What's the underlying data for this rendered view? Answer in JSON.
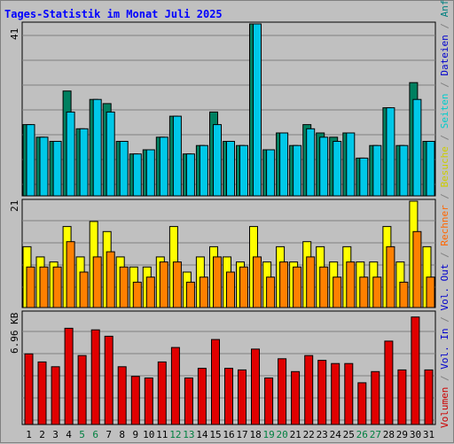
{
  "title": "Tages-Statistik im Monat Juli 2025",
  "legend": {
    "items": [
      {
        "text": "Volumen",
        "color": "#cc0000"
      },
      {
        "text": " / ",
        "color": "#808080"
      },
      {
        "text": "Vol. In",
        "color": "#0000cc"
      },
      {
        "text": " / ",
        "color": "#808080"
      },
      {
        "text": "Vol. Out",
        "color": "#0000cc"
      },
      {
        "text": " / ",
        "color": "#808080"
      },
      {
        "text": "Rechner",
        "color": "#ff6600"
      },
      {
        "text": " / ",
        "color": "#808080"
      },
      {
        "text": "Besuche",
        "color": "#cccc00"
      },
      {
        "text": " / ",
        "color": "#808080"
      },
      {
        "text": "Seiten",
        "color": "#00cccc"
      },
      {
        "text": " / ",
        "color": "#808080"
      },
      {
        "text": "Dateien",
        "color": "#0000cc"
      },
      {
        "text": " / ",
        "color": "#808080"
      },
      {
        "text": "Anfragen",
        "color": "#008080"
      }
    ]
  },
  "colors": {
    "background": "#c0c0c0",
    "anfragen": "#008060",
    "dateien": "#00c8e8",
    "besuche": "#ffff00",
    "rechner": "#ff8000",
    "volumen": "#e00000",
    "weekday_label": "#000000",
    "weekend_label": "#008040"
  },
  "chart_data": [
    {
      "type": "bar",
      "panel": "requests",
      "ymax_label": "41",
      "ylim": [
        0,
        41
      ],
      "categories": [
        "1",
        "2",
        "3",
        "4",
        "5",
        "6",
        "7",
        "8",
        "9",
        "10",
        "11",
        "12",
        "13",
        "14",
        "15",
        "16",
        "17",
        "18",
        "19",
        "20",
        "21",
        "22",
        "23",
        "24",
        "25",
        "26",
        "27",
        "28",
        "29",
        "30",
        "31"
      ],
      "series": [
        {
          "name": "Anfragen",
          "values": [
            17,
            14,
            13,
            25,
            16,
            23,
            22,
            13,
            10,
            11,
            14,
            19,
            10,
            12,
            20,
            13,
            12,
            41,
            11,
            15,
            12,
            17,
            15,
            14,
            15,
            9,
            12,
            21,
            12,
            27,
            13
          ]
        },
        {
          "name": "Dateien",
          "values": [
            17,
            14,
            13,
            20,
            16,
            23,
            20,
            13,
            10,
            11,
            14,
            19,
            10,
            12,
            17,
            13,
            12,
            41,
            11,
            15,
            12,
            16,
            14,
            13,
            15,
            9,
            12,
            21,
            12,
            23,
            13
          ]
        }
      ]
    },
    {
      "type": "bar",
      "panel": "visits",
      "ymax_label": "21",
      "ylim": [
        0,
        21
      ],
      "categories": [
        "1",
        "2",
        "3",
        "4",
        "5",
        "6",
        "7",
        "8",
        "9",
        "10",
        "11",
        "12",
        "13",
        "14",
        "15",
        "16",
        "17",
        "18",
        "19",
        "20",
        "21",
        "22",
        "23",
        "24",
        "25",
        "26",
        "27",
        "28",
        "29",
        "30",
        "31"
      ],
      "series": [
        {
          "name": "Besuche",
          "values": [
            12,
            10,
            9,
            16,
            10,
            17,
            15,
            10,
            8,
            8,
            10,
            16,
            7,
            10,
            12,
            10,
            9,
            16,
            9,
            12,
            9,
            13,
            12,
            9,
            12,
            9,
            9,
            16,
            9,
            21,
            12
          ]
        },
        {
          "name": "Rechner",
          "values": [
            8,
            8,
            8,
            13,
            7,
            10,
            11,
            8,
            5,
            6,
            9,
            9,
            5,
            6,
            10,
            7,
            8,
            10,
            6,
            9,
            8,
            10,
            8,
            6,
            9,
            6,
            6,
            12,
            5,
            15,
            6
          ]
        }
      ]
    },
    {
      "type": "bar",
      "panel": "volume",
      "ymax_label": "6.96 KB",
      "ylim": [
        0,
        6.96
      ],
      "categories": [
        "1",
        "2",
        "3",
        "4",
        "5",
        "6",
        "7",
        "8",
        "9",
        "10",
        "11",
        "12",
        "13",
        "14",
        "15",
        "16",
        "17",
        "18",
        "19",
        "20",
        "21",
        "22",
        "23",
        "24",
        "25",
        "26",
        "27",
        "28",
        "29",
        "30",
        "31"
      ],
      "series": [
        {
          "name": "Volumen",
          "values": [
            4.4,
            3.9,
            3.6,
            6.0,
            4.3,
            5.9,
            5.5,
            3.6,
            3.0,
            2.9,
            3.9,
            4.8,
            2.9,
            3.5,
            5.3,
            3.5,
            3.4,
            4.7,
            2.9,
            4.1,
            3.3,
            4.3,
            4.0,
            3.8,
            3.8,
            2.6,
            3.3,
            5.2,
            3.4,
            6.7,
            3.4
          ]
        }
      ]
    }
  ],
  "x_labels": {
    "weekend_days": [
      "5",
      "6",
      "12",
      "13",
      "19",
      "20",
      "26",
      "27"
    ]
  }
}
